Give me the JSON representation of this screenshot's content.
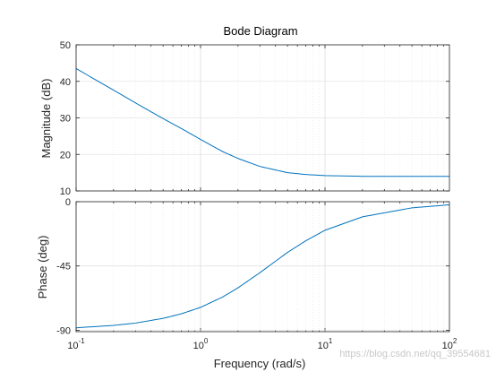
{
  "chart_data": [
    {
      "type": "line",
      "title": "Bode Diagram",
      "xlabel": "Frequency  (rad/s)",
      "ylabel": "Magnitude (dB)",
      "xscale": "log",
      "xlim": [
        0.1,
        100
      ],
      "ylim": [
        10,
        50
      ],
      "yticks": [
        "10",
        "20",
        "30",
        "40",
        "50"
      ],
      "grid": true,
      "color": "#0072BD",
      "series": [
        {
          "x": [
            0.1,
            0.2,
            0.3,
            0.5,
            0.7,
            1,
            1.5,
            2,
            3,
            5,
            7,
            10,
            20,
            50,
            100
          ],
          "values": [
            43.5,
            37.6,
            34.1,
            29.8,
            27.1,
            24.1,
            20.8,
            18.9,
            16.7,
            15.0,
            14.5,
            14.2,
            14.0,
            14.0,
            14.0
          ]
        }
      ]
    },
    {
      "type": "line",
      "xlabel": "Frequency  (rad/s)",
      "ylabel": "Phase (deg)",
      "xscale": "log",
      "xlim": [
        0.1,
        100
      ],
      "ylim": [
        -91,
        0
      ],
      "yticks": [
        "0",
        "-45",
        "-90"
      ],
      "xticks": [
        {
          "base": "10",
          "exp": "-1"
        },
        {
          "base": "10",
          "exp": "0"
        },
        {
          "base": "10",
          "exp": "1"
        },
        {
          "base": "10",
          "exp": "2"
        }
      ],
      "grid": true,
      "color": "#0072BD",
      "series": [
        {
          "x": [
            0.1,
            0.2,
            0.3,
            0.5,
            0.7,
            1,
            1.5,
            2,
            3,
            5,
            7,
            10,
            20,
            50,
            100
          ],
          "values": [
            -88.3,
            -86.6,
            -85.0,
            -81.7,
            -78.5,
            -74.0,
            -66.8,
            -60.3,
            -49.7,
            -35.5,
            -27.4,
            -20.0,
            -10.6,
            -4.3,
            -2.2
          ]
        }
      ]
    }
  ],
  "watermark": "https://blog.csdn.net/qq_39554681"
}
